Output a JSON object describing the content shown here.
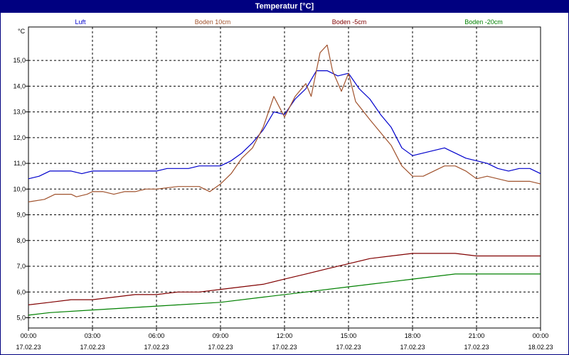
{
  "chart_data": {
    "type": "line",
    "title": "Temperatur [°C]",
    "ylabel": "°C",
    "ylim": [
      4.6,
      16.3
    ],
    "xlim": [
      "17.02.23 00:00",
      "18.02.23 00:00"
    ],
    "grid": true,
    "legend_position": "top",
    "y_ticks": [
      "5,0",
      "6,0",
      "7,0",
      "8,0",
      "9,0",
      "10,0",
      "11,0",
      "12,0",
      "13,0",
      "14,0",
      "15,0"
    ],
    "x_ticks": [
      {
        "time": "00:00",
        "date": "17.02.23"
      },
      {
        "time": "03:00",
        "date": "17.02.23"
      },
      {
        "time": "06:00",
        "date": "17.02.23"
      },
      {
        "time": "09:00",
        "date": "17.02.23"
      },
      {
        "time": "12:00",
        "date": "17.02.23"
      },
      {
        "time": "15:00",
        "date": "17.02.23"
      },
      {
        "time": "18:00",
        "date": "17.02.23"
      },
      {
        "time": "21:00",
        "date": "17.02.23"
      },
      {
        "time": "00:00",
        "date": "18.02.23"
      }
    ],
    "series": [
      {
        "name": "Luft",
        "color": "#0000cc",
        "points": [
          [
            "17.02.23 00:00",
            10.4
          ],
          [
            "17.02.23 00:30",
            10.5
          ],
          [
            "17.02.23 01:00",
            10.7
          ],
          [
            "17.02.23 02:00",
            10.7
          ],
          [
            "17.02.23 02:30",
            10.6
          ],
          [
            "17.02.23 03:00",
            10.7
          ],
          [
            "17.02.23 05:30",
            10.7
          ],
          [
            "17.02.23 06:00",
            10.7
          ],
          [
            "17.02.23 06:30",
            10.8
          ],
          [
            "17.02.23 07:30",
            10.8
          ],
          [
            "17.02.23 08:00",
            10.9
          ],
          [
            "17.02.23 09:00",
            10.9
          ],
          [
            "17.02.23 09:30",
            11.1
          ],
          [
            "17.02.23 10:00",
            11.4
          ],
          [
            "17.02.23 10:30",
            11.8
          ],
          [
            "17.02.23 11:00",
            12.3
          ],
          [
            "17.02.23 11:30",
            13.0
          ],
          [
            "17.02.23 12:00",
            12.9
          ],
          [
            "17.02.23 12:30",
            13.5
          ],
          [
            "17.02.23 13:00",
            13.9
          ],
          [
            "17.02.23 13:30",
            14.6
          ],
          [
            "17.02.23 14:00",
            14.6
          ],
          [
            "17.02.23 14:30",
            14.4
          ],
          [
            "17.02.23 15:00",
            14.5
          ],
          [
            "17.02.23 15:30",
            13.9
          ],
          [
            "17.02.23 16:00",
            13.5
          ],
          [
            "17.02.23 16:30",
            12.9
          ],
          [
            "17.02.23 17:00",
            12.4
          ],
          [
            "17.02.23 17:30",
            11.6
          ],
          [
            "17.02.23 18:00",
            11.3
          ],
          [
            "17.02.23 18:30",
            11.4
          ],
          [
            "17.02.23 19:00",
            11.5
          ],
          [
            "17.02.23 19:30",
            11.6
          ],
          [
            "17.02.23 20:00",
            11.4
          ],
          [
            "17.02.23 20:30",
            11.2
          ],
          [
            "17.02.23 21:00",
            11.1
          ],
          [
            "17.02.23 21:30",
            11.0
          ],
          [
            "17.02.23 22:00",
            10.8
          ],
          [
            "17.02.23 22:30",
            10.7
          ],
          [
            "17.02.23 23:00",
            10.8
          ],
          [
            "17.02.23 23:30",
            10.8
          ],
          [
            "18.02.23 00:00",
            10.6
          ]
        ]
      },
      {
        "name": "Boden 10cm",
        "color": "#a0522d",
        "points": [
          [
            "17.02.23 00:00",
            9.5
          ],
          [
            "17.02.23 00:45",
            9.6
          ],
          [
            "17.02.23 01:15",
            9.8
          ],
          [
            "17.02.23 02:00",
            9.8
          ],
          [
            "17.02.23 02:15",
            9.7
          ],
          [
            "17.02.23 02:45",
            9.8
          ],
          [
            "17.02.23 03:00",
            9.9
          ],
          [
            "17.02.23 03:30",
            9.9
          ],
          [
            "17.02.23 04:00",
            9.8
          ],
          [
            "17.02.23 04:30",
            9.9
          ],
          [
            "17.02.23 05:00",
            9.9
          ],
          [
            "17.02.23 05:30",
            10.0
          ],
          [
            "17.02.23 06:00",
            10.0
          ],
          [
            "17.02.23 07:00",
            10.1
          ],
          [
            "17.02.23 08:00",
            10.1
          ],
          [
            "17.02.23 08:30",
            9.9
          ],
          [
            "17.02.23 09:00",
            10.2
          ],
          [
            "17.02.23 09:30",
            10.6
          ],
          [
            "17.02.23 10:00",
            11.2
          ],
          [
            "17.02.23 10:30",
            11.6
          ],
          [
            "17.02.23 11:00",
            12.4
          ],
          [
            "17.02.23 11:30",
            13.6
          ],
          [
            "17.02.23 12:00",
            12.8
          ],
          [
            "17.02.23 12:30",
            13.6
          ],
          [
            "17.02.23 13:00",
            14.1
          ],
          [
            "17.02.23 13:15",
            13.6
          ],
          [
            "17.02.23 13:40",
            15.3
          ],
          [
            "17.02.23 14:00",
            15.6
          ],
          [
            "17.02.23 14:15",
            14.6
          ],
          [
            "17.02.23 14:40",
            13.8
          ],
          [
            "17.02.23 15:00",
            14.5
          ],
          [
            "17.02.23 15:20",
            13.4
          ],
          [
            "17.02.23 16:00",
            12.7
          ],
          [
            "17.02.23 16:30",
            12.2
          ],
          [
            "17.02.23 17:00",
            11.7
          ],
          [
            "17.02.23 17:30",
            10.9
          ],
          [
            "17.02.23 18:00",
            10.5
          ],
          [
            "17.02.23 18:30",
            10.5
          ],
          [
            "17.02.23 19:00",
            10.7
          ],
          [
            "17.02.23 19:30",
            10.9
          ],
          [
            "17.02.23 20:00",
            10.9
          ],
          [
            "17.02.23 20:30",
            10.7
          ],
          [
            "17.02.23 21:00",
            10.4
          ],
          [
            "17.02.23 21:30",
            10.5
          ],
          [
            "17.02.23 22:00",
            10.4
          ],
          [
            "17.02.23 22:30",
            10.3
          ],
          [
            "17.02.23 23:30",
            10.3
          ],
          [
            "18.02.23 00:00",
            10.2
          ]
        ]
      },
      {
        "name": "Boden -5cm",
        "color": "#800000",
        "points": [
          [
            "17.02.23 00:00",
            5.5
          ],
          [
            "17.02.23 01:00",
            5.6
          ],
          [
            "17.02.23 02:00",
            5.7
          ],
          [
            "17.02.23 03:00",
            5.7
          ],
          [
            "17.02.23 04:00",
            5.8
          ],
          [
            "17.02.23 05:00",
            5.9
          ],
          [
            "17.02.23 06:00",
            5.9
          ],
          [
            "17.02.23 07:00",
            6.0
          ],
          [
            "17.02.23 08:00",
            6.0
          ],
          [
            "17.02.23 09:00",
            6.1
          ],
          [
            "17.02.23 10:00",
            6.2
          ],
          [
            "17.02.23 11:00",
            6.3
          ],
          [
            "17.02.23 12:00",
            6.5
          ],
          [
            "17.02.23 13:00",
            6.7
          ],
          [
            "17.02.23 14:00",
            6.9
          ],
          [
            "17.02.23 15:00",
            7.1
          ],
          [
            "17.02.23 16:00",
            7.3
          ],
          [
            "17.02.23 17:00",
            7.4
          ],
          [
            "17.02.23 18:00",
            7.5
          ],
          [
            "17.02.23 20:00",
            7.5
          ],
          [
            "17.02.23 21:00",
            7.4
          ],
          [
            "18.02.23 00:00",
            7.4
          ]
        ]
      },
      {
        "name": "Boden -20cm",
        "color": "#008000",
        "points": [
          [
            "17.02.23 00:00",
            5.1
          ],
          [
            "17.02.23 01:00",
            5.2
          ],
          [
            "17.02.23 03:00",
            5.3
          ],
          [
            "17.02.23 05:00",
            5.4
          ],
          [
            "17.02.23 07:00",
            5.5
          ],
          [
            "17.02.23 09:00",
            5.6
          ],
          [
            "17.02.23 11:00",
            5.8
          ],
          [
            "17.02.23 13:00",
            6.0
          ],
          [
            "17.02.23 15:00",
            6.2
          ],
          [
            "17.02.23 16:00",
            6.3
          ],
          [
            "17.02.23 17:00",
            6.4
          ],
          [
            "17.02.23 18:00",
            6.5
          ],
          [
            "17.02.23 19:00",
            6.6
          ],
          [
            "17.02.23 20:00",
            6.7
          ],
          [
            "18.02.23 00:00",
            6.7
          ]
        ]
      }
    ]
  }
}
